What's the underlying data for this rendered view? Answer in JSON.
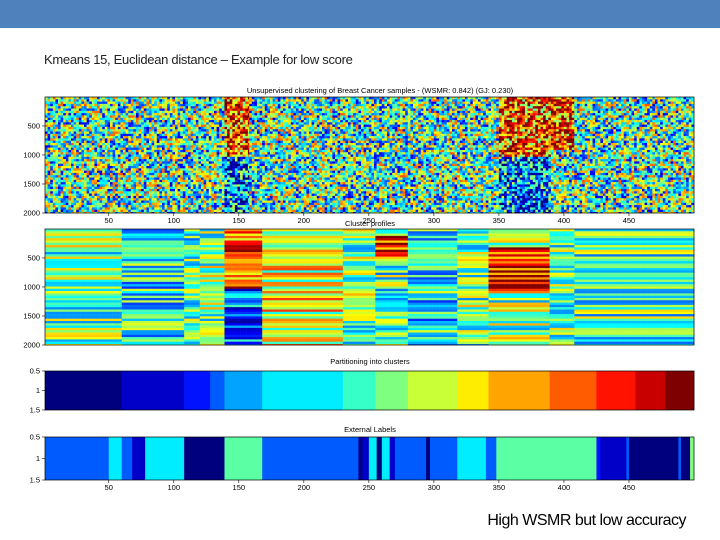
{
  "slide": {
    "title": "Kmeans 15, Euclidean distance – Example for low score",
    "caption": "High WSMR but low accuracy"
  },
  "colors": {
    "header_bar": "#4f81bd",
    "colormap": [
      "#00007f",
      "#0000ff",
      "#007fff",
      "#00ffff",
      "#7fff7f",
      "#ffff00",
      "#ff7f00",
      "#ff0000",
      "#7f0000"
    ]
  },
  "chart_data": [
    {
      "type": "heatmap",
      "title": "Unsupervised clustering of Breast Cancer samples - (WSMR: 0.842) (GJ: 0.230)",
      "xlabel": "",
      "ylabel": "",
      "xlim": [
        1,
        500
      ],
      "ylim": [
        2000,
        1
      ],
      "x_ticks": [
        50,
        100,
        150,
        200,
        250,
        300,
        350,
        400,
        450
      ],
      "y_ticks": [
        500,
        1000,
        1500,
        2000
      ],
      "blocks": [
        {
          "x_start": 1,
          "x_end": 139,
          "pattern": "mixed"
        },
        {
          "x_start": 139,
          "x_end": 158,
          "pattern": "high-top-low-bottom"
        },
        {
          "x_start": 158,
          "x_end": 350,
          "pattern": "mixed"
        },
        {
          "x_start": 350,
          "x_end": 390,
          "pattern": "high-top-low-bottom"
        },
        {
          "x_start": 390,
          "x_end": 408,
          "pattern": "high-top"
        },
        {
          "x_start": 408,
          "x_end": 500,
          "pattern": "mixed"
        }
      ]
    },
    {
      "type": "heatmap",
      "title": "Cluster profiles",
      "xlim": [
        1,
        500
      ],
      "ylim": [
        2000,
        1
      ],
      "y_ticks": [
        500,
        1000,
        1500,
        2000
      ],
      "blocks": [
        {
          "x_start": 1,
          "x_end": 60,
          "pattern": "neutral"
        },
        {
          "x_start": 60,
          "x_end": 108,
          "pattern": "cyan"
        },
        {
          "x_start": 108,
          "x_end": 120,
          "pattern": "mixed"
        },
        {
          "x_start": 120,
          "x_end": 139,
          "pattern": "banded"
        },
        {
          "x_start": 139,
          "x_end": 168,
          "pattern": "high-top-low-bottom"
        },
        {
          "x_start": 168,
          "x_end": 230,
          "pattern": "yellow"
        },
        {
          "x_start": 230,
          "x_end": 255,
          "pattern": "neutral"
        },
        {
          "x_start": 255,
          "x_end": 280,
          "pattern": "red-band"
        },
        {
          "x_start": 280,
          "x_end": 318,
          "pattern": "cyan"
        },
        {
          "x_start": 318,
          "x_end": 342,
          "pattern": "neutral"
        },
        {
          "x_start": 342,
          "x_end": 389,
          "pattern": "high-mid"
        },
        {
          "x_start": 389,
          "x_end": 408,
          "pattern": "mixed"
        },
        {
          "x_start": 408,
          "x_end": 500,
          "pattern": "mixed"
        }
      ]
    },
    {
      "type": "heatmap",
      "title": "Partitioning into clusters",
      "xlim": [
        1,
        500
      ],
      "y_ticks": [
        "0.5",
        "1",
        "1.5"
      ],
      "segments": [
        {
          "x_start": 1,
          "x_end": 60,
          "value": 1
        },
        {
          "x_start": 60,
          "x_end": 108,
          "value": 2
        },
        {
          "x_start": 108,
          "x_end": 128,
          "value": 3
        },
        {
          "x_start": 128,
          "x_end": 139,
          "value": 4
        },
        {
          "x_start": 139,
          "x_end": 168,
          "value": 5
        },
        {
          "x_start": 168,
          "x_end": 230,
          "value": 6
        },
        {
          "x_start": 230,
          "x_end": 255,
          "value": 7
        },
        {
          "x_start": 255,
          "x_end": 280,
          "value": 8
        },
        {
          "x_start": 280,
          "x_end": 318,
          "value": 9
        },
        {
          "x_start": 318,
          "x_end": 342,
          "value": 10
        },
        {
          "x_start": 342,
          "x_end": 389,
          "value": 11
        },
        {
          "x_start": 389,
          "x_end": 425,
          "value": 12
        },
        {
          "x_start": 425,
          "x_end": 455,
          "value": 13
        },
        {
          "x_start": 455,
          "x_end": 478,
          "value": 14
        },
        {
          "x_start": 478,
          "x_end": 500,
          "value": 15
        }
      ]
    },
    {
      "type": "heatmap",
      "title": "External Labels",
      "xlim": [
        1,
        500
      ],
      "x_ticks": [
        50,
        100,
        150,
        200,
        250,
        300,
        350,
        400,
        450
      ],
      "y_ticks": [
        "0.5",
        "1",
        "1.5"
      ],
      "segments": [
        {
          "x_start": 1,
          "x_end": 50,
          "value": 4
        },
        {
          "x_start": 50,
          "x_end": 60,
          "value": 6
        },
        {
          "x_start": 60,
          "x_end": 68,
          "value": 4
        },
        {
          "x_start": 68,
          "x_end": 78,
          "value": 2
        },
        {
          "x_start": 78,
          "x_end": 108,
          "value": 6
        },
        {
          "x_start": 108,
          "x_end": 139,
          "value": 1
        },
        {
          "x_start": 139,
          "x_end": 168,
          "value": 7.5
        },
        {
          "x_start": 168,
          "x_end": 242,
          "value": 4
        },
        {
          "x_start": 242,
          "x_end": 245,
          "value": 1
        },
        {
          "x_start": 245,
          "x_end": 250,
          "value": 2
        },
        {
          "x_start": 250,
          "x_end": 256,
          "value": 6
        },
        {
          "x_start": 256,
          "x_end": 260,
          "value": 1
        },
        {
          "x_start": 260,
          "x_end": 266,
          "value": 6
        },
        {
          "x_start": 266,
          "x_end": 270,
          "value": 2
        },
        {
          "x_start": 270,
          "x_end": 294,
          "value": 4
        },
        {
          "x_start": 294,
          "x_end": 297,
          "value": 1
        },
        {
          "x_start": 297,
          "x_end": 318,
          "value": 4
        },
        {
          "x_start": 318,
          "x_end": 340,
          "value": 6
        },
        {
          "x_start": 340,
          "x_end": 348,
          "value": 4
        },
        {
          "x_start": 348,
          "x_end": 425,
          "value": 7.5
        },
        {
          "x_start": 425,
          "x_end": 428,
          "value": 3
        },
        {
          "x_start": 428,
          "x_end": 448,
          "value": 2
        },
        {
          "x_start": 448,
          "x_end": 450,
          "value": 4
        },
        {
          "x_start": 450,
          "x_end": 488,
          "value": 1
        },
        {
          "x_start": 488,
          "x_end": 490,
          "value": 4
        },
        {
          "x_start": 490,
          "x_end": 497,
          "value": 1
        },
        {
          "x_start": 497,
          "x_end": 500,
          "value": 8
        }
      ]
    }
  ]
}
